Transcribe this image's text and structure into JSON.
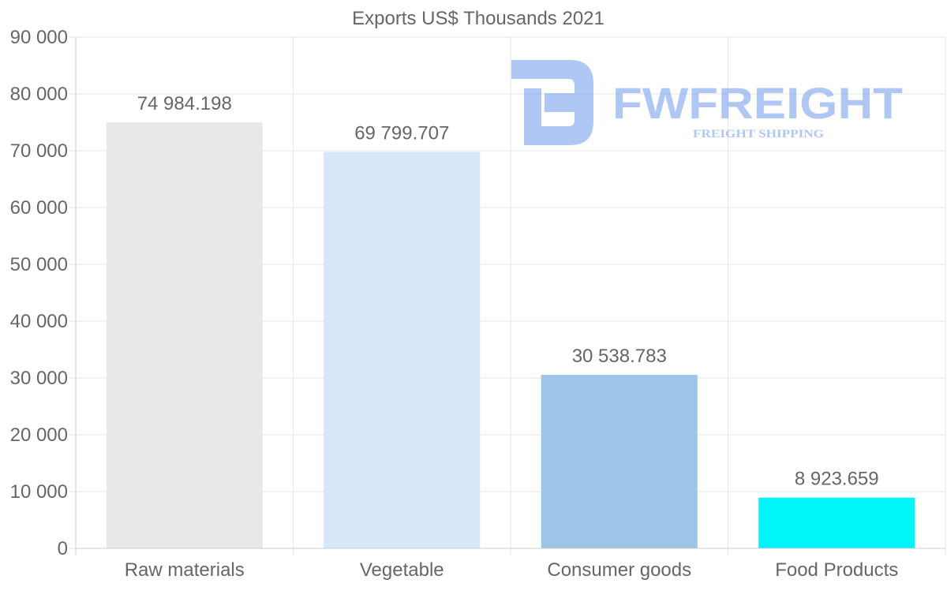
{
  "chart_data": {
    "type": "bar",
    "title": "Exports US$ Thousands 2021",
    "xlabel": "",
    "ylabel": "",
    "categories": [
      "Raw materials",
      "Vegetable",
      "Consumer goods",
      "Food Products"
    ],
    "values": [
      74984.198,
      69799.707,
      30538.783,
      8923.659
    ],
    "data_labels": [
      "74 984.198",
      "69 799.707",
      "30 538.783",
      "8 923.659"
    ],
    "bar_colors": [
      "#e8e8e8",
      "#d6e7f9",
      "#9cc5e8",
      "#00f6f6"
    ],
    "ylim": [
      0,
      90000
    ],
    "yticks": [
      0,
      10000,
      20000,
      30000,
      40000,
      50000,
      60000,
      70000,
      80000,
      90000
    ],
    "ytick_labels": [
      "0",
      "10 000",
      "20 000",
      "30 000",
      "40 000",
      "50 000",
      "60 000",
      "70 000",
      "80 000",
      "90 000"
    ],
    "grid": true,
    "legend": "none"
  },
  "watermark": {
    "name": "FWFREIGHT",
    "tagline": "FREIGHT SHIPPING",
    "color": "#7aa3ee"
  },
  "colors": {
    "text": "#666666",
    "grid": "#e6e6e6",
    "axis": "#cccccc"
  }
}
